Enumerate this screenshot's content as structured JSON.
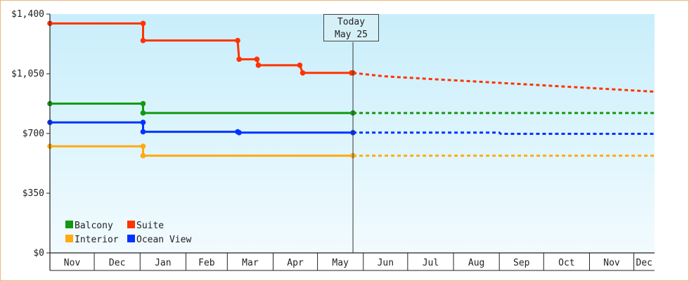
{
  "chart_data": {
    "type": "line",
    "step": true,
    "y_ticks": [
      "$0",
      "$350",
      "$700",
      "$1,050",
      "$1,400"
    ],
    "y_tick_values": [
      0,
      350,
      700,
      1050,
      1400
    ],
    "ylim": [
      0,
      1400
    ],
    "months": [
      "Nov",
      "Dec",
      "Jan",
      "Feb",
      "Mar",
      "Apr",
      "May",
      "Jun",
      "Jul",
      "Aug",
      "Sep",
      "Oct",
      "Nov",
      "Dec"
    ],
    "today_marker": {
      "line1": "Today",
      "line2": "May 25",
      "date": "2023-05-25"
    },
    "x_range": [
      "2022-11-01",
      "2023-12-15"
    ],
    "legend": {
      "placement": "bottom-left"
    },
    "series": [
      {
        "name": "Suite",
        "color": "#ff3300",
        "actual": [
          {
            "date": "2022-11-01",
            "value": 1345
          },
          {
            "date": "2023-01-03",
            "value": 1345
          },
          {
            "date": "2023-01-03",
            "value": 1245
          },
          {
            "date": "2023-03-08",
            "value": 1245
          },
          {
            "date": "2023-03-09",
            "value": 1135
          },
          {
            "date": "2023-03-21",
            "value": 1135
          },
          {
            "date": "2023-03-22",
            "value": 1100
          },
          {
            "date": "2023-04-19",
            "value": 1100
          },
          {
            "date": "2023-04-21",
            "value": 1055
          },
          {
            "date": "2023-05-24",
            "value": 1055
          },
          {
            "date": "2023-05-25",
            "value": 1055
          }
        ],
        "forecast": [
          {
            "date": "2023-05-25",
            "value": 1055
          },
          {
            "date": "2023-06-15",
            "value": 1035
          },
          {
            "date": "2023-07-15",
            "value": 1020
          },
          {
            "date": "2023-08-15",
            "value": 1005
          },
          {
            "date": "2023-09-15",
            "value": 990
          },
          {
            "date": "2023-10-15",
            "value": 975
          },
          {
            "date": "2023-11-15",
            "value": 960
          },
          {
            "date": "2023-12-15",
            "value": 945
          }
        ],
        "markers": [
          "2022-11-01",
          "2023-01-03",
          "2023-01-03b",
          "2023-03-08",
          "2023-03-09",
          "2023-03-21",
          "2023-03-22",
          "2023-04-19",
          "2023-04-21",
          "2023-05-24",
          "2023-05-25"
        ]
      },
      {
        "name": "Balcony",
        "color": "#119911",
        "actual": [
          {
            "date": "2022-11-01",
            "value": 875
          },
          {
            "date": "2023-01-03",
            "value": 875
          },
          {
            "date": "2023-01-03",
            "value": 820
          },
          {
            "date": "2023-05-25",
            "value": 820
          }
        ],
        "forecast": [
          {
            "date": "2023-05-25",
            "value": 820
          },
          {
            "date": "2023-12-15",
            "value": 820
          }
        ]
      },
      {
        "name": "Ocean View",
        "color": "#0033ff",
        "actual": [
          {
            "date": "2022-11-01",
            "value": 765
          },
          {
            "date": "2023-01-03",
            "value": 765
          },
          {
            "date": "2023-01-03",
            "value": 710
          },
          {
            "date": "2023-03-08",
            "value": 710
          },
          {
            "date": "2023-03-09",
            "value": 705
          },
          {
            "date": "2023-05-25",
            "value": 705
          }
        ],
        "forecast": [
          {
            "date": "2023-05-25",
            "value": 705
          },
          {
            "date": "2023-09-01",
            "value": 705
          },
          {
            "date": "2023-09-02",
            "value": 698
          },
          {
            "date": "2023-12-15",
            "value": 698
          }
        ]
      },
      {
        "name": "Interior",
        "color": "#ffaa11",
        "actual": [
          {
            "date": "2022-11-01",
            "value": 625
          },
          {
            "date": "2023-01-03",
            "value": 625
          },
          {
            "date": "2023-01-03",
            "value": 570
          },
          {
            "date": "2023-05-25",
            "value": 570
          }
        ],
        "forecast": [
          {
            "date": "2023-05-25",
            "value": 570
          },
          {
            "date": "2023-12-15",
            "value": 570
          }
        ]
      }
    ],
    "legend_order": [
      "Balcony",
      "Suite",
      "Interior",
      "Ocean View"
    ]
  }
}
